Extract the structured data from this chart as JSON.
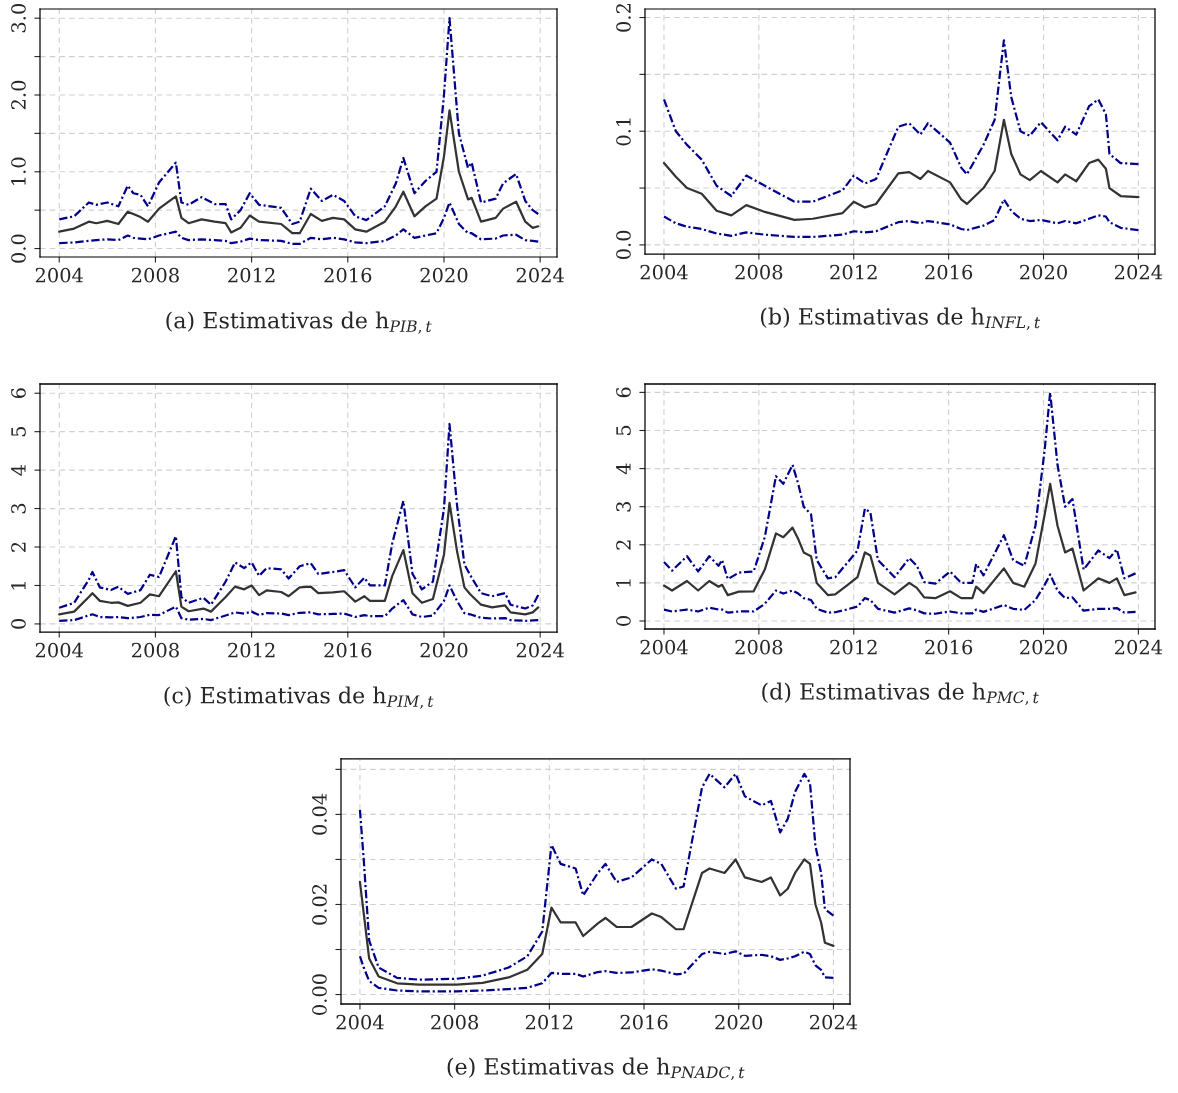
{
  "chart_data": [
    {
      "type": "line",
      "title": "(a) Estimativas de h$_{PIB,t}$",
      "x": [
        2004.0,
        2004.62,
        2005.23,
        2005.54,
        2006.0,
        2006.46,
        2006.85,
        2007.08,
        2007.38,
        2007.69,
        2008.15,
        2008.85,
        2009.08,
        2009.38,
        2009.92,
        2010.46,
        2010.92,
        2011.15,
        2011.54,
        2011.92,
        2012.31,
        2013.23,
        2013.69,
        2014.0,
        2014.46,
        2014.92,
        2015.38,
        2015.85,
        2016.31,
        2016.77,
        2017.54,
        2018.0,
        2018.31,
        2018.77,
        2019.23,
        2019.69,
        2020.0,
        2020.23,
        2020.62,
        2021.0,
        2021.15,
        2021.54,
        2022.15,
        2022.46,
        2023.0,
        2023.38,
        2023.69,
        2023.92
      ],
      "series": [
        {
          "color": "#333333",
          "line_style": "solid",
          "values": [
            0.22,
            0.26,
            0.35,
            0.33,
            0.36,
            0.32,
            0.48,
            0.45,
            0.41,
            0.35,
            0.52,
            0.68,
            0.4,
            0.33,
            0.38,
            0.35,
            0.33,
            0.21,
            0.27,
            0.43,
            0.35,
            0.32,
            0.2,
            0.2,
            0.45,
            0.36,
            0.4,
            0.38,
            0.25,
            0.22,
            0.35,
            0.55,
            0.74,
            0.42,
            0.55,
            0.65,
            1.2,
            1.8,
            1.0,
            0.64,
            0.66,
            0.35,
            0.4,
            0.52,
            0.61,
            0.35,
            0.27,
            0.29
          ]
        },
        {
          "color": "#00008b",
          "line_style": "dashed",
          "values": [
            0.38,
            0.42,
            0.6,
            0.57,
            0.6,
            0.55,
            0.82,
            0.72,
            0.7,
            0.55,
            0.86,
            1.12,
            0.6,
            0.57,
            0.67,
            0.58,
            0.58,
            0.38,
            0.5,
            0.72,
            0.57,
            0.53,
            0.32,
            0.35,
            0.78,
            0.62,
            0.7,
            0.62,
            0.42,
            0.37,
            0.55,
            0.85,
            1.18,
            0.72,
            0.88,
            1.0,
            2.0,
            3.0,
            1.5,
            1.05,
            1.12,
            0.6,
            0.65,
            0.85,
            0.97,
            0.62,
            0.5,
            0.45
          ]
        },
        {
          "color": "#00008b",
          "line_style": "dashed",
          "values": [
            0.07,
            0.08,
            0.1,
            0.11,
            0.12,
            0.11,
            0.17,
            0.14,
            0.13,
            0.12,
            0.17,
            0.22,
            0.14,
            0.11,
            0.12,
            0.11,
            0.1,
            0.07,
            0.09,
            0.13,
            0.11,
            0.1,
            0.06,
            0.06,
            0.14,
            0.12,
            0.14,
            0.12,
            0.08,
            0.07,
            0.1,
            0.17,
            0.25,
            0.14,
            0.17,
            0.2,
            0.4,
            0.6,
            0.32,
            0.2,
            0.2,
            0.12,
            0.13,
            0.17,
            0.18,
            0.11,
            0.1,
            0.09
          ]
        }
      ],
      "xlim": [
        2003.2,
        2024.7
      ],
      "ylim": [
        -0.11,
        3.12
      ],
      "xticks": [
        2004,
        2008,
        2012,
        2016,
        2020,
        2024
      ],
      "yticks": [
        {
          "value": 0,
          "label": "0.0"
        },
        {
          "value": 0.5,
          "label": null
        },
        {
          "value": 1,
          "label": "1.0"
        },
        {
          "value": 1.5,
          "label": null
        },
        {
          "value": 2,
          "label": "2.0"
        },
        {
          "value": 2.5,
          "label": null
        },
        {
          "value": 3,
          "label": "3.0"
        }
      ],
      "grid": true
    },
    {
      "type": "line",
      "title": "(b) Estimativas de h$_{INFL,t}$",
      "x": [
        2004.0,
        2004.5,
        2004.97,
        2005.59,
        2006.22,
        2006.84,
        2007.47,
        2008.25,
        2009.5,
        2010.28,
        2011.53,
        2012.0,
        2012.47,
        2012.94,
        2013.88,
        2014.34,
        2014.81,
        2015.13,
        2016.06,
        2016.53,
        2016.77,
        2017.47,
        2017.94,
        2018.33,
        2018.64,
        2019.03,
        2019.42,
        2019.89,
        2020.59,
        2020.91,
        2021.38,
        2021.92,
        2022.31,
        2022.63,
        2022.78,
        2023.25,
        2024.0
      ],
      "series": [
        {
          "color": "#333333",
          "line_style": "solid",
          "values": [
            0.072,
            0.06,
            0.05,
            0.045,
            0.03,
            0.026,
            0.035,
            0.029,
            0.022,
            0.023,
            0.028,
            0.038,
            0.033,
            0.036,
            0.063,
            0.064,
            0.058,
            0.065,
            0.055,
            0.04,
            0.036,
            0.05,
            0.065,
            0.11,
            0.08,
            0.062,
            0.057,
            0.065,
            0.055,
            0.062,
            0.056,
            0.072,
            0.075,
            0.067,
            0.05,
            0.043,
            0.042
          ]
        },
        {
          "color": "#00008b",
          "line_style": "dashed",
          "values": [
            0.128,
            0.1,
            0.088,
            0.075,
            0.052,
            0.043,
            0.061,
            0.052,
            0.038,
            0.038,
            0.048,
            0.061,
            0.054,
            0.058,
            0.104,
            0.107,
            0.097,
            0.107,
            0.09,
            0.068,
            0.062,
            0.088,
            0.11,
            0.18,
            0.13,
            0.1,
            0.096,
            0.108,
            0.092,
            0.104,
            0.097,
            0.122,
            0.128,
            0.115,
            0.08,
            0.072,
            0.071
          ]
        },
        {
          "color": "#00008b",
          "line_style": "dashed",
          "values": [
            0.025,
            0.019,
            0.016,
            0.014,
            0.01,
            0.008,
            0.011,
            0.009,
            0.007,
            0.007,
            0.009,
            0.012,
            0.011,
            0.012,
            0.02,
            0.021,
            0.019,
            0.021,
            0.018,
            0.014,
            0.013,
            0.017,
            0.022,
            0.04,
            0.03,
            0.023,
            0.021,
            0.022,
            0.019,
            0.021,
            0.019,
            0.023,
            0.026,
            0.025,
            0.02,
            0.015,
            0.013
          ]
        }
      ],
      "xlim": [
        2003.2,
        2024.7
      ],
      "ylim": [
        -0.008,
        0.2075
      ],
      "xticks": [
        2004,
        2008,
        2012,
        2016,
        2020,
        2024
      ],
      "yticks": [
        {
          "value": 0,
          "label": "0.0"
        },
        {
          "value": 0.05,
          "label": null
        },
        {
          "value": 0.1,
          "label": "0.1"
        },
        {
          "value": 0.15,
          "label": null
        },
        {
          "value": 0.2,
          "label": "0.2"
        }
      ],
      "grid": true
    },
    {
      "type": "line",
      "title": "(c) Estimativas de h$_{PIM,t}$",
      "x": [
        2004.0,
        2004.62,
        2005.23,
        2005.38,
        2005.69,
        2006.15,
        2006.46,
        2006.85,
        2007.38,
        2007.77,
        2008.15,
        2008.85,
        2009.08,
        2009.38,
        2010.0,
        2010.31,
        2010.92,
        2011.31,
        2011.69,
        2012.0,
        2012.31,
        2012.62,
        2013.23,
        2013.54,
        2014.0,
        2014.46,
        2014.77,
        2015.38,
        2015.85,
        2016.31,
        2016.69,
        2016.92,
        2017.54,
        2017.85,
        2018.31,
        2018.69,
        2019.08,
        2019.54,
        2020.0,
        2020.23,
        2020.54,
        2020.85,
        2021.08,
        2021.54,
        2022.0,
        2022.54,
        2022.77,
        2023.38,
        2023.69,
        2023.92
      ],
      "series": [
        {
          "color": "#333333",
          "line_style": "solid",
          "values": [
            0.25,
            0.32,
            0.7,
            0.8,
            0.6,
            0.55,
            0.56,
            0.47,
            0.55,
            0.77,
            0.72,
            1.37,
            0.45,
            0.33,
            0.4,
            0.32,
            0.7,
            0.97,
            0.9,
            1.0,
            0.75,
            0.87,
            0.83,
            0.72,
            0.95,
            0.97,
            0.8,
            0.82,
            0.85,
            0.58,
            0.72,
            0.6,
            0.6,
            1.25,
            1.92,
            0.8,
            0.55,
            0.65,
            1.8,
            3.15,
            1.9,
            0.95,
            0.78,
            0.5,
            0.43,
            0.48,
            0.3,
            0.25,
            0.3,
            0.43
          ]
        },
        {
          "color": "#00008b",
          "line_style": "dashed",
          "values": [
            0.42,
            0.55,
            1.15,
            1.35,
            0.95,
            0.88,
            0.97,
            0.78,
            0.88,
            1.28,
            1.22,
            2.28,
            0.7,
            0.55,
            0.68,
            0.5,
            1.1,
            1.6,
            1.45,
            1.6,
            1.25,
            1.45,
            1.42,
            1.18,
            1.5,
            1.58,
            1.3,
            1.35,
            1.4,
            0.95,
            1.2,
            1.0,
            1.0,
            2.1,
            3.2,
            1.3,
            0.9,
            1.1,
            3.0,
            5.2,
            3.1,
            1.55,
            1.28,
            0.8,
            0.72,
            0.8,
            0.5,
            0.4,
            0.48,
            0.75
          ]
        },
        {
          "color": "#00008b",
          "line_style": "dashed",
          "values": [
            0.08,
            0.1,
            0.22,
            0.25,
            0.18,
            0.17,
            0.18,
            0.15,
            0.18,
            0.24,
            0.23,
            0.45,
            0.15,
            0.11,
            0.13,
            0.1,
            0.22,
            0.3,
            0.27,
            0.32,
            0.23,
            0.28,
            0.27,
            0.23,
            0.29,
            0.3,
            0.25,
            0.26,
            0.27,
            0.18,
            0.23,
            0.2,
            0.2,
            0.4,
            0.62,
            0.25,
            0.18,
            0.22,
            0.6,
            1.0,
            0.6,
            0.28,
            0.25,
            0.16,
            0.14,
            0.15,
            0.1,
            0.08,
            0.09,
            0.1
          ]
        }
      ],
      "xlim": [
        2003.2,
        2024.7
      ],
      "ylim": [
        -0.21,
        6.24
      ],
      "xticks": [
        2004,
        2008,
        2012,
        2016,
        2020,
        2024
      ],
      "yticks": [
        0,
        1,
        2,
        3,
        4,
        5,
        6
      ],
      "grid": true
    },
    {
      "type": "line",
      "title": "(d) Estimativas de h$_{PMC,t}$",
      "x": [
        2004.0,
        2004.34,
        2004.97,
        2005.44,
        2005.91,
        2006.3,
        2006.45,
        2006.69,
        2007.16,
        2007.78,
        2008.25,
        2008.72,
        2009.03,
        2009.42,
        2009.66,
        2009.89,
        2010.2,
        2010.44,
        2010.91,
        2011.22,
        2011.69,
        2012.16,
        2012.47,
        2012.7,
        2013.02,
        2013.72,
        2014.34,
        2014.66,
        2014.97,
        2015.44,
        2016.06,
        2016.53,
        2017.0,
        2017.16,
        2017.47,
        2018.33,
        2018.72,
        2019.19,
        2019.66,
        2020.05,
        2020.28,
        2020.59,
        2020.91,
        2021.22,
        2021.69,
        2022.31,
        2022.78,
        2023.09,
        2023.41,
        2023.88
      ],
      "series": [
        {
          "color": "#333333",
          "line_style": "solid",
          "values": [
            0.93,
            0.8,
            1.05,
            0.8,
            1.05,
            0.9,
            0.95,
            0.68,
            0.77,
            0.78,
            1.35,
            2.3,
            2.2,
            2.45,
            2.15,
            1.8,
            1.7,
            1.0,
            0.68,
            0.7,
            0.92,
            1.15,
            1.8,
            1.72,
            1.0,
            0.7,
            1.0,
            0.87,
            0.62,
            0.6,
            0.78,
            0.6,
            0.6,
            0.9,
            0.73,
            1.38,
            1.0,
            0.9,
            1.5,
            2.8,
            3.6,
            2.5,
            1.8,
            1.9,
            0.8,
            1.12,
            1.0,
            1.12,
            0.68,
            0.75
          ]
        },
        {
          "color": "#00008b",
          "line_style": "dashed",
          "values": [
            1.55,
            1.32,
            1.7,
            1.3,
            1.7,
            1.45,
            1.6,
            1.1,
            1.27,
            1.3,
            2.2,
            3.8,
            3.6,
            4.1,
            3.6,
            3.0,
            2.8,
            1.6,
            1.12,
            1.15,
            1.5,
            1.85,
            2.95,
            2.85,
            1.6,
            1.15,
            1.65,
            1.45,
            1.02,
            0.98,
            1.3,
            1.0,
            1.0,
            1.5,
            1.2,
            2.25,
            1.6,
            1.45,
            2.5,
            4.5,
            6.0,
            4.1,
            3.0,
            3.2,
            1.35,
            1.85,
            1.65,
            1.88,
            1.12,
            1.25
          ]
        },
        {
          "color": "#00008b",
          "line_style": "dashed",
          "values": [
            0.3,
            0.25,
            0.3,
            0.25,
            0.35,
            0.3,
            0.3,
            0.22,
            0.25,
            0.25,
            0.45,
            0.8,
            0.72,
            0.8,
            0.72,
            0.6,
            0.55,
            0.32,
            0.22,
            0.23,
            0.3,
            0.38,
            0.6,
            0.55,
            0.32,
            0.22,
            0.33,
            0.28,
            0.2,
            0.19,
            0.25,
            0.2,
            0.2,
            0.3,
            0.24,
            0.42,
            0.32,
            0.29,
            0.55,
            0.95,
            1.22,
            0.8,
            0.6,
            0.62,
            0.27,
            0.32,
            0.32,
            0.34,
            0.22,
            0.24
          ]
        }
      ],
      "xlim": [
        2003.2,
        2024.7
      ],
      "ylim": [
        -0.21,
        6.22
      ],
      "xticks": [
        2004,
        2008,
        2012,
        2016,
        2020,
        2024
      ],
      "yticks": [
        0,
        1,
        2,
        3,
        4,
        5,
        6
      ],
      "grid": true
    },
    {
      "type": "line",
      "title": "(e) Estimativas de h$_{PNADC,t}$",
      "x": [
        2004.0,
        2004.16,
        2004.39,
        2004.79,
        2005.57,
        2006.51,
        2008.08,
        2009.18,
        2010.28,
        2011.07,
        2011.7,
        2012.09,
        2012.48,
        2013.11,
        2013.43,
        2014.05,
        2014.37,
        2014.84,
        2015.47,
        2016.33,
        2016.73,
        2017.35,
        2017.67,
        2018.45,
        2018.77,
        2019.4,
        2019.87,
        2020.26,
        2020.97,
        2021.36,
        2021.75,
        2022.07,
        2022.38,
        2022.77,
        2023.01,
        2023.24,
        2023.48,
        2023.64,
        2024.0
      ],
      "series": [
        {
          "color": "#333333",
          "line_style": "solid",
          "values": [
            0.025,
            0.018,
            0.008,
            0.004,
            0.0025,
            0.0022,
            0.0022,
            0.0026,
            0.0038,
            0.0055,
            0.009,
            0.0193,
            0.016,
            0.016,
            0.013,
            0.0158,
            0.017,
            0.015,
            0.015,
            0.018,
            0.0172,
            0.0145,
            0.0145,
            0.027,
            0.028,
            0.027,
            0.03,
            0.026,
            0.025,
            0.026,
            0.022,
            0.0235,
            0.027,
            0.03,
            0.029,
            0.02,
            0.016,
            0.0115,
            0.0108
          ]
        },
        {
          "color": "#00008b",
          "line_style": "dashed",
          "values": [
            0.041,
            0.03,
            0.012,
            0.006,
            0.0037,
            0.0033,
            0.0035,
            0.0042,
            0.006,
            0.0085,
            0.014,
            0.0332,
            0.029,
            0.028,
            0.022,
            0.027,
            0.029,
            0.025,
            0.026,
            0.03,
            0.029,
            0.0235,
            0.024,
            0.046,
            0.049,
            0.046,
            0.049,
            0.044,
            0.042,
            0.043,
            0.036,
            0.039,
            0.045,
            0.049,
            0.047,
            0.033,
            0.027,
            0.019,
            0.0175
          ]
        },
        {
          "color": "#00008b",
          "line_style": "dashed",
          "values": [
            0.0085,
            0.006,
            0.003,
            0.0015,
            0.0009,
            0.0007,
            0.0007,
            0.0009,
            0.0012,
            0.0015,
            0.0025,
            0.0048,
            0.0046,
            0.0046,
            0.004,
            0.005,
            0.0052,
            0.0048,
            0.0049,
            0.0056,
            0.0053,
            0.0045,
            0.0046,
            0.009,
            0.0095,
            0.009,
            0.0096,
            0.0086,
            0.0088,
            0.0085,
            0.0077,
            0.008,
            0.0085,
            0.0095,
            0.009,
            0.0065,
            0.0055,
            0.0038,
            0.0037
          ]
        }
      ],
      "xlim": [
        2003.2,
        2024.7
      ],
      "ylim": [
        -0.0021,
        0.0523
      ],
      "xticks": [
        2004,
        2008,
        2012,
        2016,
        2020,
        2024
      ],
      "yticks": [
        {
          "value": 0,
          "label": "0.00"
        },
        {
          "value": 0.01,
          "label": null
        },
        {
          "value": 0.02,
          "label": "0.02"
        },
        {
          "value": 0.03,
          "label": null
        },
        {
          "value": 0.04,
          "label": "0.04"
        },
        {
          "value": 0.05,
          "label": null
        }
      ],
      "grid": true
    }
  ]
}
